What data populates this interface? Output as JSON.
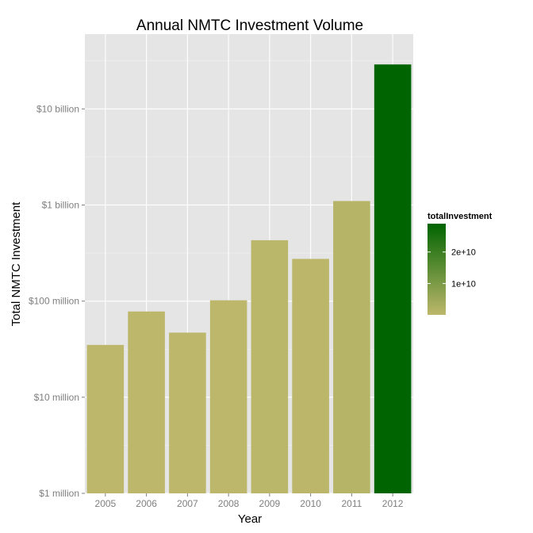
{
  "chart_data": {
    "type": "bar",
    "title": "Annual NMTC Investment Volume",
    "xlabel": "Year",
    "ylabel": "Total NMTC Investment",
    "y_scale": "log10",
    "ylim": [
      1000000,
      60000000000
    ],
    "grid": true,
    "categories": [
      "2005",
      "2006",
      "2007",
      "2008",
      "2009",
      "2010",
      "2011",
      "2012"
    ],
    "values": [
      35000000,
      78000000,
      47000000,
      102000000,
      430000000,
      275000000,
      1100000000,
      29000000000
    ],
    "y_ticks": [
      {
        "value": 1000000,
        "label": "$1 million"
      },
      {
        "value": 10000000,
        "label": "$10 million"
      },
      {
        "value": 100000000,
        "label": "$100 million"
      },
      {
        "value": 1000000000,
        "label": "$1 billion"
      },
      {
        "value": 10000000000,
        "label": "$10 billion"
      }
    ],
    "legend": {
      "title": "totalInvestment",
      "placement": "right",
      "low_color": "#bdb76b",
      "high_color": "#006400",
      "range": [
        35000000,
        29000000000
      ],
      "ticks": [
        {
          "value": 10000000000,
          "label": "1e+10"
        },
        {
          "value": 20000000000,
          "label": "2e+10"
        }
      ]
    },
    "colors": {
      "panel": "#e5e5e5",
      "grid_major": "#ffffff",
      "grid_minor": "#f2f2f2"
    }
  }
}
